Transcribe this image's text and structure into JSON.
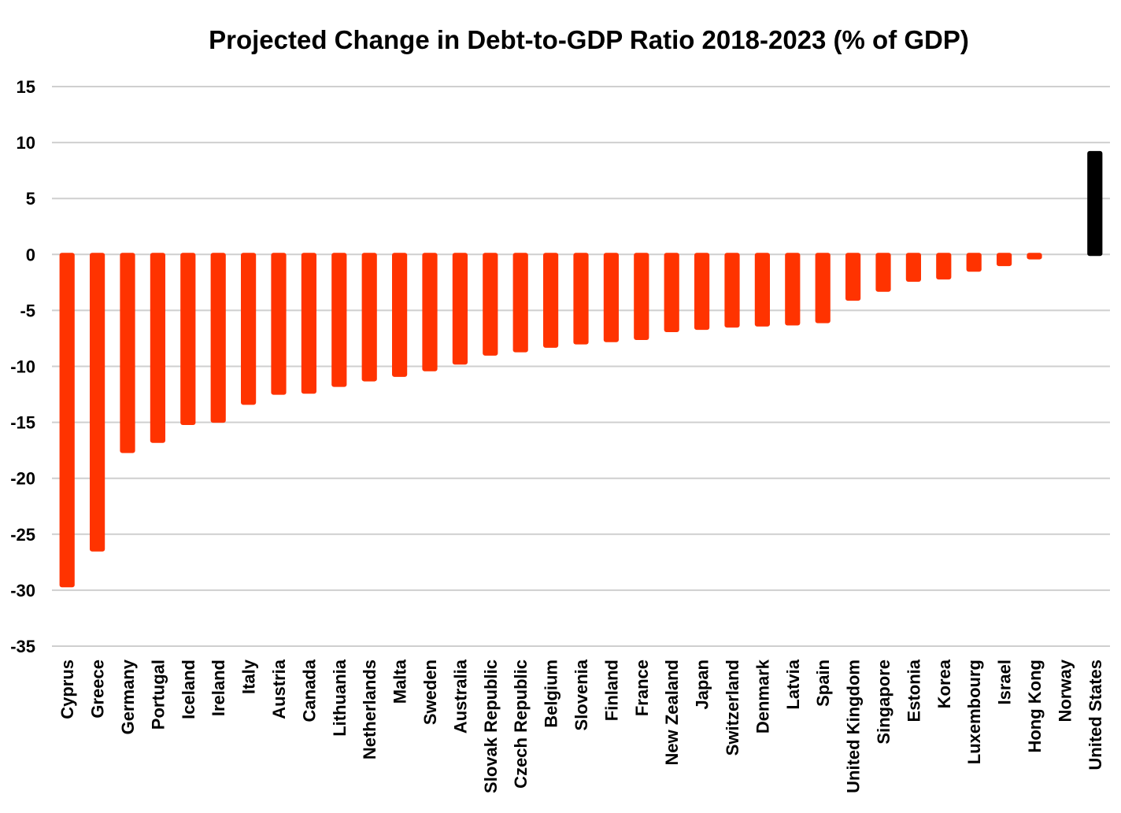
{
  "chart_data": {
    "type": "bar",
    "title": "Projected Change in Debt-to-GDP Ratio 2018-2023 (% of GDP)",
    "xlabel": "",
    "ylabel": "",
    "ylim": [
      -35,
      15
    ],
    "yticks": [
      15,
      10,
      5,
      0,
      -5,
      -10,
      -15,
      -20,
      -25,
      -30,
      -35
    ],
    "grid": true,
    "legend": "none",
    "colors": {
      "default": "#FF3300",
      "highlight": "#000000"
    },
    "highlight_category": "United States",
    "categories": [
      "Cyprus",
      "Greece",
      "Germany",
      "Portugal",
      "Iceland",
      "Ireland",
      "Italy",
      "Austria",
      "Canada",
      "Lithuania",
      "Netherlands",
      "Malta",
      "Sweden",
      "Australia",
      "Slovak Republic",
      "Czech Republic",
      "Belgium",
      "Slovenia",
      "Finland",
      "France",
      "New Zealand",
      "Japan",
      "Switzerland",
      "Denmark",
      "Latvia",
      "Spain",
      "United Kingdom",
      "Singapore",
      "Estonia",
      "Korea",
      "Luxembourg",
      "Israel",
      "Hong Kong",
      "Norway",
      "United States"
    ],
    "values": [
      -29.6,
      -26.4,
      -17.6,
      -16.7,
      -15.1,
      -14.9,
      -13.3,
      -12.4,
      -12.3,
      -11.7,
      -11.2,
      -10.8,
      -10.3,
      -9.7,
      -8.9,
      -8.6,
      -8.2,
      -7.9,
      -7.7,
      -7.5,
      -6.8,
      -6.6,
      -6.4,
      -6.3,
      -6.2,
      -6.0,
      -4.0,
      -3.2,
      -2.3,
      -2.1,
      -1.4,
      -0.9,
      -0.3,
      0.0,
      9.1
    ]
  }
}
